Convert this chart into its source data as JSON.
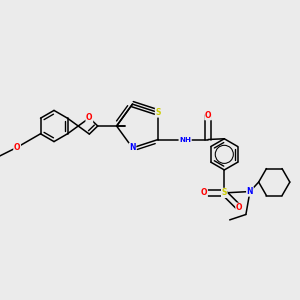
{
  "background_color": "#ebebeb",
  "bond_color": "#000000",
  "figsize": [
    3.0,
    3.0
  ],
  "dpi": 100,
  "atom_colors": {
    "O": "#ff0000",
    "N": "#0000ff",
    "S": "#cccc00",
    "C": "#000000",
    "H": "#000000"
  }
}
